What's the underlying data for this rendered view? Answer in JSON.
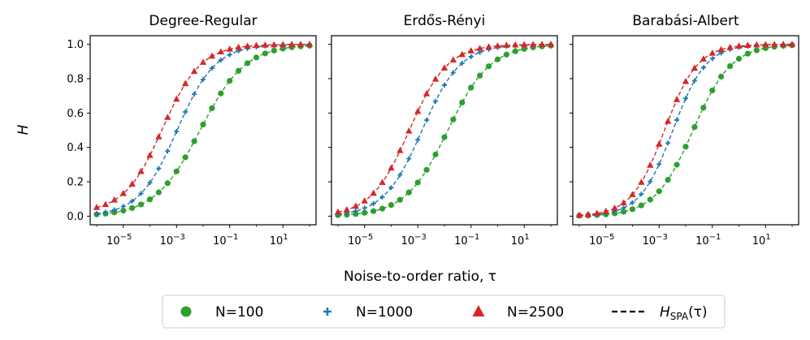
{
  "chart_data": {
    "type": "scatter",
    "xscale": "log",
    "ylabel": "H",
    "xlabel": "Noise-to-order ratio, τ",
    "xlim": [
      1e-06,
      100
    ],
    "ylim": [
      -0.05,
      1.05
    ],
    "yticks": [
      "0.0",
      "0.2",
      "0.4",
      "0.6",
      "0.8",
      "1.0"
    ],
    "xticks": [
      {
        "value": 1e-05,
        "base": "10",
        "exp": "−5"
      },
      {
        "value": 0.001,
        "base": "10",
        "exp": "−3"
      },
      {
        "value": 0.1,
        "base": "10",
        "exp": "−1"
      },
      {
        "value": 10,
        "base": "10",
        "exp": "1"
      }
    ],
    "legend": {
      "placement": "bottom-center",
      "entries": [
        {
          "label": "N=100",
          "marker": "circle",
          "color": "#2ca02c"
        },
        {
          "label": "N=1000",
          "marker": "plus",
          "color": "#1f77b4"
        },
        {
          "label": "N=2500",
          "marker": "triangle",
          "color": "#d62728"
        },
        {
          "label_main": "H",
          "label_sub": "SPA",
          "label_tail": "(τ)",
          "marker": "dashed-line",
          "color": "#000000"
        }
      ]
    },
    "x_points": [
      1e-06,
      2.15e-06,
      4.64e-06,
      1e-05,
      2.15e-05,
      4.64e-05,
      0.0001,
      0.000215,
      0.000464,
      0.001,
      0.00215,
      0.00464,
      0.01,
      0.0215,
      0.0464,
      0.1,
      0.215,
      0.464,
      1,
      2.15,
      4.64,
      10,
      21.5,
      46.4,
      100
    ],
    "panels": [
      {
        "title": "Degree-Regular",
        "series": [
          {
            "name": "N=100",
            "color": "#2ca02c",
            "marker": "circle",
            "center": 0.0077,
            "width": 0.85,
            "floor": 0.0
          },
          {
            "name": "N=1000",
            "color": "#1f77b4",
            "marker": "plus",
            "center": 0.00105,
            "width": 0.72,
            "floor": 0.0
          },
          {
            "name": "N=2500",
            "color": "#d62728",
            "marker": "triangle",
            "center": 0.0003,
            "width": 0.72,
            "floor": 0.02
          }
        ]
      },
      {
        "title": "Erdős-Rényi",
        "series": [
          {
            "name": "N=100",
            "color": "#2ca02c",
            "marker": "circle",
            "center": 0.0135,
            "width": 0.8,
            "floor": 0.0
          },
          {
            "name": "N=1000",
            "color": "#1f77b4",
            "marker": "plus",
            "center": 0.00145,
            "width": 0.72,
            "floor": 0.0
          },
          {
            "name": "N=2500",
            "color": "#d62728",
            "marker": "triangle",
            "center": 0.00048,
            "width": 0.72,
            "floor": 0.0
          }
        ]
      },
      {
        "title": "Barabási-Albert",
        "series": [
          {
            "name": "N=100",
            "color": "#2ca02c",
            "marker": "circle",
            "center": 0.019,
            "width": 0.72,
            "floor": 0.0
          },
          {
            "name": "N=1000",
            "color": "#1f77b4",
            "marker": "plus",
            "center": 0.0033,
            "width": 0.62,
            "floor": 0.0
          },
          {
            "name": "N=2500",
            "color": "#d62728",
            "marker": "triangle",
            "center": 0.0016,
            "width": 0.62,
            "floor": 0.0
          }
        ]
      }
    ]
  }
}
